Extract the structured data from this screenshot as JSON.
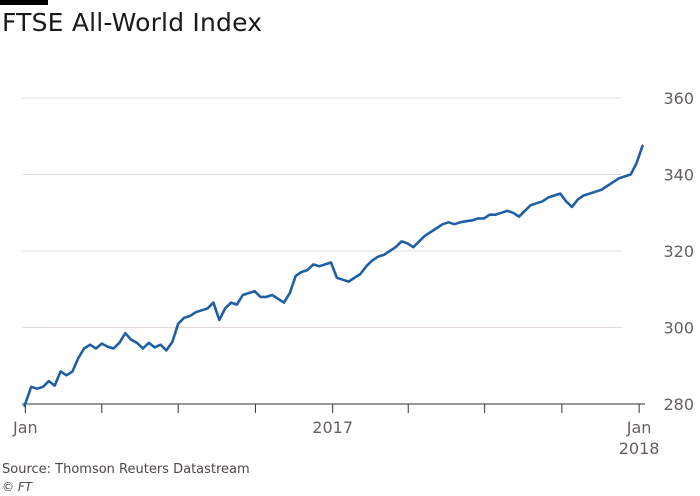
{
  "header": {
    "title": "FTSE All-World Index"
  },
  "footer": {
    "source": "Source: Thomson Reuters Datastream",
    "credit": "© FT"
  },
  "colors": {
    "line": "#1f5fa6",
    "grid": "#e6dcd5",
    "axis": "#33302e",
    "text": "#66605c"
  },
  "chart_data": {
    "type": "line",
    "title": "FTSE All-World Index",
    "xlabel": "",
    "ylabel": "",
    "ylim": [
      280,
      360
    ],
    "y_ticks": [
      280,
      300,
      320,
      340,
      360
    ],
    "y_tick_labels": [
      "280",
      "300",
      "320",
      "340",
      "360"
    ],
    "x_range": [
      "2015-12-28",
      "2018-01-08"
    ],
    "x_tick_dates": [
      "2016-01-01",
      "2016-04-01",
      "2016-07-01",
      "2016-10-01",
      "2017-01-01",
      "2017-04-01",
      "2017-07-01",
      "2017-10-01",
      "2018-01-01"
    ],
    "x_tick_labels": [
      {
        "date": "2016-01-01",
        "lines": [
          "Jan"
        ]
      },
      {
        "date": "2017-01-01",
        "lines": [
          "2017"
        ]
      },
      {
        "date": "2018-01-01",
        "lines": [
          "Jan",
          "2018"
        ]
      }
    ],
    "grid": true,
    "series": [
      {
        "x": [
          "2015-12-31",
          "2016-01-08",
          "2016-01-15",
          "2016-01-22",
          "2016-01-29",
          "2016-02-05",
          "2016-02-12",
          "2016-02-19",
          "2016-02-26",
          "2016-03-04",
          "2016-03-11",
          "2016-03-18",
          "2016-03-25",
          "2016-04-01",
          "2016-04-08",
          "2016-04-15",
          "2016-04-22",
          "2016-04-29",
          "2016-05-06",
          "2016-05-13",
          "2016-05-20",
          "2016-05-27",
          "2016-06-03",
          "2016-06-10",
          "2016-06-17",
          "2016-06-24",
          "2016-07-01",
          "2016-07-08",
          "2016-07-15",
          "2016-07-22",
          "2016-07-29",
          "2016-08-05",
          "2016-08-12",
          "2016-08-19",
          "2016-08-26",
          "2016-09-02",
          "2016-09-09",
          "2016-09-16",
          "2016-09-23",
          "2016-09-30",
          "2016-10-07",
          "2016-10-14",
          "2016-10-21",
          "2016-10-28",
          "2016-11-04",
          "2016-11-11",
          "2016-11-18",
          "2016-11-25",
          "2016-12-02",
          "2016-12-09",
          "2016-12-16",
          "2016-12-23",
          "2016-12-30",
          "2017-01-06",
          "2017-01-13",
          "2017-01-20",
          "2017-01-27",
          "2017-02-03",
          "2017-02-10",
          "2017-02-17",
          "2017-02-24",
          "2017-03-03",
          "2017-03-10",
          "2017-03-17",
          "2017-03-24",
          "2017-03-31",
          "2017-04-07",
          "2017-04-14",
          "2017-04-21",
          "2017-04-28",
          "2017-05-05",
          "2017-05-12",
          "2017-05-19",
          "2017-05-26",
          "2017-06-02",
          "2017-06-09",
          "2017-06-16",
          "2017-06-23",
          "2017-06-30",
          "2017-07-07",
          "2017-07-14",
          "2017-07-21",
          "2017-07-28",
          "2017-08-04",
          "2017-08-11",
          "2017-08-18",
          "2017-08-25",
          "2017-09-01",
          "2017-09-08",
          "2017-09-15",
          "2017-09-22",
          "2017-09-29",
          "2017-10-06",
          "2017-10-13",
          "2017-10-20",
          "2017-10-27",
          "2017-11-03",
          "2017-11-10",
          "2017-11-17",
          "2017-11-24",
          "2017-12-01",
          "2017-12-08",
          "2017-12-15",
          "2017-12-22",
          "2017-12-29",
          "2018-01-05"
        ],
        "values": [
          279.5,
          284.5,
          284.0,
          284.5,
          286.0,
          284.8,
          288.5,
          287.5,
          288.5,
          292.0,
          294.5,
          295.5,
          294.5,
          295.8,
          295.0,
          294.5,
          296.0,
          298.5,
          296.8,
          296.0,
          294.5,
          296.0,
          294.8,
          295.5,
          294.0,
          296.2,
          301.0,
          302.5,
          303.0,
          304.0,
          304.5,
          305.0,
          306.5,
          302.0,
          305.0,
          306.5,
          306.0,
          308.5,
          309.0,
          309.5,
          308.0,
          308.0,
          308.5,
          307.5,
          306.5,
          309.0,
          313.5,
          314.5,
          315.0,
          316.5,
          316.0,
          316.5,
          317.0,
          313.0,
          312.5,
          312.0,
          313.0,
          314.0,
          316.0,
          317.5,
          318.5,
          319.0,
          320.0,
          321.0,
          322.5,
          322.0,
          321.0,
          322.5,
          324.0,
          325.0,
          326.0,
          327.0,
          327.5,
          327.0,
          327.5,
          327.8,
          328.0,
          328.5,
          328.5,
          329.5,
          329.5,
          330.0,
          330.5,
          330.0,
          329.0,
          330.5,
          332.0,
          332.5,
          333.0,
          334.0,
          334.5,
          335.0,
          333.0,
          331.5,
          333.5,
          334.5,
          335.0,
          335.5,
          336.0,
          337.0,
          338.0,
          339.0,
          339.5,
          340.0,
          343.0,
          347.5
        ]
      }
    ]
  }
}
